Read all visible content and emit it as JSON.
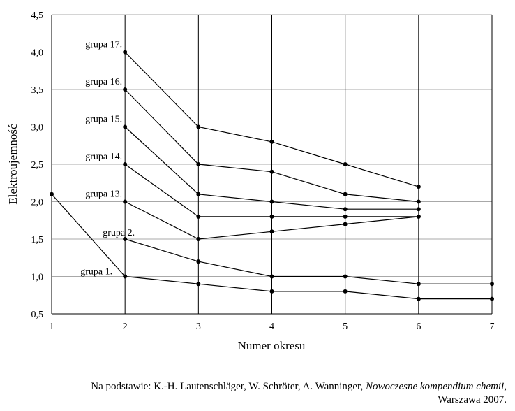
{
  "chart_data": {
    "type": "line",
    "xlabel": "Numer okresu",
    "ylabel": "Elektroujemność",
    "x_ticks": [
      "1",
      "2",
      "3",
      "4",
      "5",
      "6",
      "7"
    ],
    "y_ticks": [
      "0,5",
      "1,0",
      "1,5",
      "2,0",
      "2,5",
      "3,0",
      "3,5",
      "4,0",
      "4,5"
    ],
    "xlim": [
      1,
      7
    ],
    "ylim": [
      0.5,
      4.5
    ],
    "grid": "vertical and horizontal",
    "series": [
      {
        "name": "grupa 1.",
        "x": [
          1,
          2,
          3,
          4,
          5,
          6,
          7
        ],
        "y": [
          2.1,
          1.0,
          0.9,
          0.8,
          0.8,
          0.7,
          0.7
        ]
      },
      {
        "name": "grupa 2.",
        "x": [
          2,
          3,
          4,
          5,
          6,
          7
        ],
        "y": [
          1.5,
          1.2,
          1.0,
          1.0,
          0.9,
          0.9
        ]
      },
      {
        "name": "grupa 13.",
        "x": [
          2,
          3,
          4,
          5,
          6
        ],
        "y": [
          2.0,
          1.5,
          1.6,
          1.7,
          1.8
        ]
      },
      {
        "name": "grupa 14.",
        "x": [
          2,
          3,
          4,
          5,
          6
        ],
        "y": [
          2.5,
          1.8,
          1.8,
          1.8,
          1.8
        ]
      },
      {
        "name": "grupa 15.",
        "x": [
          2,
          3,
          4,
          5,
          6
        ],
        "y": [
          3.0,
          2.1,
          2.0,
          1.9,
          1.9
        ]
      },
      {
        "name": "grupa 16.",
        "x": [
          2,
          3,
          4,
          5,
          6
        ],
        "y": [
          3.5,
          2.5,
          2.4,
          2.1,
          2.0
        ]
      },
      {
        "name": "grupa 17.",
        "x": [
          2,
          3,
          4,
          5,
          6
        ],
        "y": [
          4.0,
          3.0,
          2.8,
          2.5,
          2.2
        ]
      }
    ]
  },
  "source": {
    "prefix": "Na podstawie: K.-H. Lautenschläger, W. Schröter, A. Wanninger, ",
    "title": "Nowoczesne kompendium chemii,",
    "suffix": "Warszawa 2007."
  }
}
